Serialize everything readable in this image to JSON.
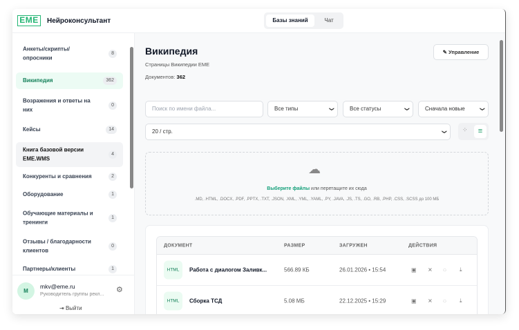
{
  "app": {
    "logo": "EME",
    "title": "Нейроконсультант"
  },
  "tabs": [
    {
      "label": "Базы знаний",
      "active": true
    },
    {
      "label": "Чат",
      "active": false
    }
  ],
  "sidebar": {
    "items": [
      {
        "label": "Анкеты/скрипты/опросники",
        "count": "8"
      },
      {
        "label": "Википедия",
        "count": "362",
        "active": true
      },
      {
        "label": "Возражения и ответы на них",
        "count": "0"
      },
      {
        "label": "Кейсы",
        "count": "14"
      },
      {
        "label": "Книга базовой версии EME.WMS",
        "count": "4",
        "hover": true
      },
      {
        "label": "Конкуренты и сравнения",
        "count": "2"
      },
      {
        "label": "Оборудование",
        "count": "1"
      },
      {
        "label": "Обучающие материалы и тренинги",
        "count": "1"
      },
      {
        "label": "Отзывы / благодарности клиентов",
        "count": "0"
      },
      {
        "label": "Партнеры/клиенты",
        "count": "1"
      }
    ]
  },
  "user": {
    "initial": "M",
    "email": "mkv@eme.ru",
    "role": "Руководитель группы рекл...",
    "logout": "Выйти"
  },
  "main": {
    "title": "Википедия",
    "subtitle": "Страницы Википедии EME",
    "docs_label": "Документов:",
    "docs_count": "362",
    "manage_label": "Управление",
    "search_placeholder": "Поиск по имени файла...",
    "type_filter": "Все типы",
    "status_filter": "Все статусы",
    "sort": "Сначала новые",
    "per_page": "20 / стр.",
    "view_mode": "list",
    "upload": {
      "link": "Выберите файлы",
      "text": " или перетащите их сюда",
      "formats": ".MD, .HTML, .DOCX, .PDF, .PPTX, .TXT, .JSON, .XML, .YML, .YAML, .PY, .JAVA, .JS, .TS, .GO, .RB, .PHP, .CSS, .SCSS до 100 МБ"
    },
    "table": {
      "headers": [
        "ДОКУМЕНТ",
        "РАЗМЕР",
        "ЗАГРУЖЕН",
        "ДЕЙСТВИЯ"
      ],
      "rows": [
        {
          "type": "HTML",
          "name": "Работа с диалогом Заливк...",
          "size": "566.89 КБ",
          "date": "26.01.2026 • 15:54"
        },
        {
          "type": "HTML",
          "name": "Сборка ТСД",
          "size": "5.08 МБ",
          "date": "22.12.2025 • 15:29"
        }
      ]
    }
  },
  "colors": {
    "accent": "#15805a",
    "active_bg": "#ecfbf4"
  }
}
